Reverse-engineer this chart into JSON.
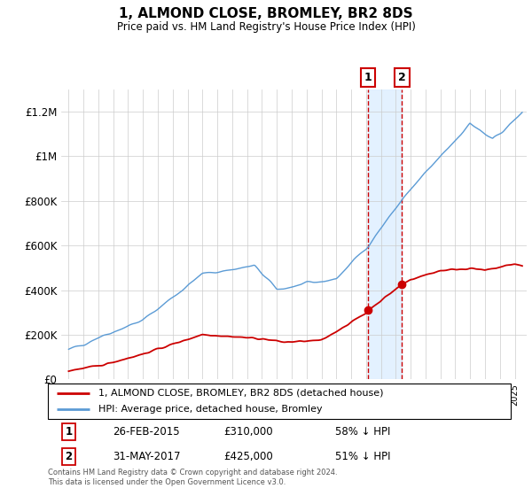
{
  "title": "1, ALMOND CLOSE, BROMLEY, BR2 8DS",
  "subtitle": "Price paid vs. HM Land Registry's House Price Index (HPI)",
  "ylim": [
    0,
    1300000
  ],
  "yticks": [
    0,
    200000,
    400000,
    600000,
    800000,
    1000000,
    1200000
  ],
  "ytick_labels": [
    "£0",
    "£200K",
    "£400K",
    "£600K",
    "£800K",
    "£1M",
    "£1.2M"
  ],
  "hpi_color": "#5b9bd5",
  "price_color": "#cc0000",
  "sale1_date": 2015.15,
  "sale1_price": 310000,
  "sale2_date": 2017.42,
  "sale2_price": 425000,
  "legend_entries": [
    "1, ALMOND CLOSE, BROMLEY, BR2 8DS (detached house)",
    "HPI: Average price, detached house, Bromley"
  ],
  "table_rows": [
    [
      "1",
      "26-FEB-2015",
      "£310,000",
      "58% ↓ HPI"
    ],
    [
      "2",
      "31-MAY-2017",
      "£425,000",
      "51% ↓ HPI"
    ]
  ],
  "footnote": "Contains HM Land Registry data © Crown copyright and database right 2024.\nThis data is licensed under the Open Government Licence v3.0.",
  "bg_shade_color": "#ddeeff",
  "vline_color": "#cc0000",
  "box_color": "#cc0000",
  "xlim_left": 1994.5,
  "xlim_right": 2025.8
}
